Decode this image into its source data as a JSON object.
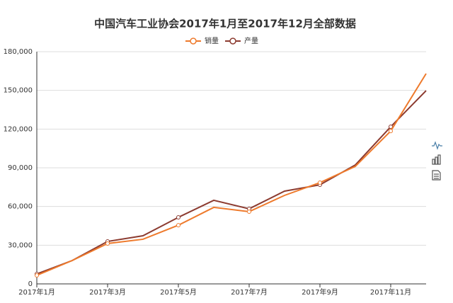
{
  "chart_data": {
    "type": "line",
    "title": "中国汽车工业协会2017年1月至2017年12月全部数据",
    "categories": [
      "2017年1月",
      null,
      "2017年3月",
      null,
      "2017年5月",
      null,
      "2017年7月",
      null,
      "2017年9月",
      null,
      "2017年11月",
      null
    ],
    "series": [
      {
        "name": "销量",
        "color": "#ee7a2c",
        "values": [
          6600,
          18100,
          31300,
          34600,
          45500,
          59300,
          56000,
          68600,
          78500,
          91100,
          118500,
          163000
        ]
      },
      {
        "name": "产量",
        "color": "#8c3b30",
        "values": [
          7700,
          18100,
          32900,
          37300,
          51600,
          64800,
          58200,
          71900,
          76800,
          92200,
          121800,
          149800
        ]
      }
    ],
    "ylim": [
      0,
      180000
    ],
    "yticks": [
      0,
      {
        "value": 30000,
        "label": "30,000"
      },
      {
        "value": 60000,
        "label": "60,000"
      },
      {
        "value": 90000,
        "label": "90,000"
      },
      {
        "value": 120000,
        "label": "120,000"
      },
      {
        "value": 150000,
        "label": "150,000"
      },
      {
        "value": 180000,
        "label": "180,000"
      }
    ],
    "grid": true
  }
}
